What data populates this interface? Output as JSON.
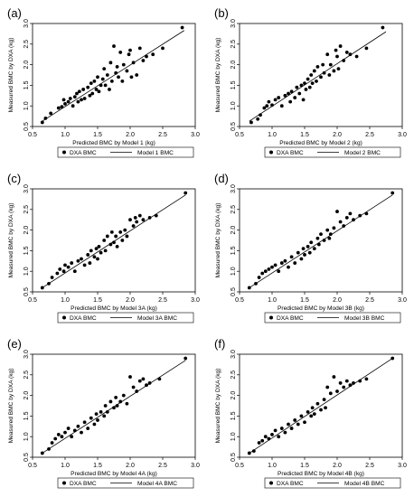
{
  "chart_data": [
    {
      "panel_label": "(a)",
      "type": "scatter",
      "xlabel": "Predicted BMC by Model 1 (kg)",
      "ylabel": "Measured BMC by DXA (kg)",
      "xlim": [
        0.5,
        3.0
      ],
      "ylim": [
        0.5,
        3.0
      ],
      "xticks": [
        "0.5",
        "1.0",
        "1.5",
        "2.0",
        "2.5",
        "3.0"
      ],
      "yticks": [
        "0.5",
        "1.0",
        "1.5",
        "2.0",
        "2.5",
        "3.0"
      ],
      "legend": [
        "DXA BMC",
        "Model 1 BMC"
      ],
      "line": [
        [
          0.65,
          0.63
        ],
        [
          2.83,
          2.83
        ]
      ],
      "points": [
        [
          0.65,
          0.6
        ],
        [
          0.7,
          0.7
        ],
        [
          0.78,
          0.82
        ],
        [
          0.9,
          0.95
        ],
        [
          0.95,
          0.98
        ],
        [
          0.98,
          1.15
        ],
        [
          1.0,
          1.05
        ],
        [
          1.05,
          1.1
        ],
        [
          1.08,
          1.18
        ],
        [
          1.12,
          1.0
        ],
        [
          1.15,
          1.22
        ],
        [
          1.18,
          1.3
        ],
        [
          1.2,
          1.1
        ],
        [
          1.22,
          1.35
        ],
        [
          1.25,
          1.15
        ],
        [
          1.28,
          1.4
        ],
        [
          1.3,
          1.18
        ],
        [
          1.35,
          1.45
        ],
        [
          1.38,
          1.25
        ],
        [
          1.4,
          1.55
        ],
        [
          1.42,
          1.3
        ],
        [
          1.45,
          1.6
        ],
        [
          1.48,
          1.4
        ],
        [
          1.5,
          1.7
        ],
        [
          1.52,
          1.35
        ],
        [
          1.55,
          1.5
        ],
        [
          1.58,
          1.65
        ],
        [
          1.6,
          1.9
        ],
        [
          1.62,
          1.5
        ],
        [
          1.65,
          1.75
        ],
        [
          1.68,
          1.4
        ],
        [
          1.7,
          2.05
        ],
        [
          1.72,
          1.6
        ],
        [
          1.75,
          2.45
        ],
        [
          1.78,
          1.8
        ],
        [
          1.8,
          1.95
        ],
        [
          1.82,
          1.7
        ],
        [
          1.85,
          2.3
        ],
        [
          1.88,
          1.6
        ],
        [
          1.9,
          2.0
        ],
        [
          1.95,
          1.85
        ],
        [
          1.98,
          2.25
        ],
        [
          2.0,
          2.35
        ],
        [
          2.02,
          1.7
        ],
        [
          2.05,
          2.05
        ],
        [
          2.1,
          1.75
        ],
        [
          2.15,
          2.4
        ],
        [
          2.2,
          2.1
        ],
        [
          2.25,
          2.2
        ],
        [
          2.35,
          2.25
        ],
        [
          2.5,
          2.4
        ],
        [
          2.8,
          2.9
        ]
      ]
    },
    {
      "panel_label": "(b)",
      "type": "scatter",
      "xlabel": "Predicted BMC by Model 2 (kg)",
      "ylabel": "Measured BMC by DXA (kg)",
      "xlim": [
        0.5,
        3.0
      ],
      "ylim": [
        0.5,
        3.0
      ],
      "xticks": [
        "0.5",
        "1.0",
        "1.5",
        "2.0",
        "2.5",
        "3.0"
      ],
      "yticks": [
        "0.5",
        "1.0",
        "1.5",
        "2.0",
        "2.5",
        "3.0"
      ],
      "legend": [
        "DXA BMC",
        "Model 2 BMC"
      ],
      "line": [
        [
          0.65,
          0.63
        ],
        [
          2.75,
          2.8
        ]
      ],
      "points": [
        [
          0.68,
          0.6
        ],
        [
          0.78,
          0.68
        ],
        [
          0.82,
          0.78
        ],
        [
          0.88,
          0.95
        ],
        [
          0.92,
          1.0
        ],
        [
          0.95,
          1.1
        ],
        [
          1.0,
          1.02
        ],
        [
          1.05,
          1.15
        ],
        [
          1.1,
          1.2
        ],
        [
          1.15,
          1.0
        ],
        [
          1.2,
          1.25
        ],
        [
          1.25,
          1.3
        ],
        [
          1.28,
          1.1
        ],
        [
          1.3,
          1.35
        ],
        [
          1.35,
          1.2
        ],
        [
          1.38,
          1.45
        ],
        [
          1.42,
          1.3
        ],
        [
          1.45,
          1.5
        ],
        [
          1.48,
          1.15
        ],
        [
          1.5,
          1.55
        ],
        [
          1.52,
          1.4
        ],
        [
          1.55,
          1.65
        ],
        [
          1.58,
          1.45
        ],
        [
          1.6,
          1.75
        ],
        [
          1.62,
          1.55
        ],
        [
          1.65,
          1.85
        ],
        [
          1.68,
          1.6
        ],
        [
          1.7,
          1.95
        ],
        [
          1.75,
          1.7
        ],
        [
          1.78,
          2.0
        ],
        [
          1.8,
          1.8
        ],
        [
          1.85,
          2.25
        ],
        [
          1.88,
          1.75
        ],
        [
          1.9,
          2.0
        ],
        [
          1.95,
          1.85
        ],
        [
          1.98,
          2.35
        ],
        [
          2.0,
          2.2
        ],
        [
          2.02,
          1.9
        ],
        [
          2.05,
          2.45
        ],
        [
          2.1,
          2.1
        ],
        [
          2.15,
          2.3
        ],
        [
          2.2,
          2.25
        ],
        [
          2.3,
          2.2
        ],
        [
          2.45,
          2.4
        ],
        [
          2.7,
          2.9
        ]
      ]
    },
    {
      "panel_label": "(c)",
      "type": "scatter",
      "xlabel": "Predicted BMC by Model 3A (kg)",
      "ylabel": "Measured BMC by DXA (kg)",
      "xlim": [
        0.5,
        3.0
      ],
      "ylim": [
        0.5,
        3.0
      ],
      "xticks": [
        "0.5",
        "1.0",
        "1.5",
        "2.0",
        "2.5",
        "3.0"
      ],
      "yticks": [
        "0.5",
        "1.0",
        "1.5",
        "2.0",
        "2.5",
        "3.0"
      ],
      "legend": [
        "DXA BMC",
        "Model 3A BMC"
      ],
      "line": [
        [
          0.65,
          0.6
        ],
        [
          2.85,
          2.85
        ]
      ],
      "points": [
        [
          0.65,
          0.6
        ],
        [
          0.75,
          0.7
        ],
        [
          0.8,
          0.85
        ],
        [
          0.88,
          0.95
        ],
        [
          0.92,
          1.05
        ],
        [
          0.98,
          1.0
        ],
        [
          1.0,
          1.15
        ],
        [
          1.05,
          1.1
        ],
        [
          1.1,
          1.2
        ],
        [
          1.15,
          1.0
        ],
        [
          1.2,
          1.25
        ],
        [
          1.25,
          1.3
        ],
        [
          1.3,
          1.15
        ],
        [
          1.35,
          1.4
        ],
        [
          1.38,
          1.2
        ],
        [
          1.4,
          1.5
        ],
        [
          1.45,
          1.35
        ],
        [
          1.48,
          1.55
        ],
        [
          1.5,
          1.3
        ],
        [
          1.52,
          1.6
        ],
        [
          1.55,
          1.45
        ],
        [
          1.6,
          1.75
        ],
        [
          1.62,
          1.5
        ],
        [
          1.65,
          1.85
        ],
        [
          1.7,
          1.65
        ],
        [
          1.72,
          1.95
        ],
        [
          1.75,
          1.7
        ],
        [
          1.78,
          1.85
        ],
        [
          1.8,
          1.6
        ],
        [
          1.85,
          1.95
        ],
        [
          1.88,
          1.75
        ],
        [
          1.92,
          2.0
        ],
        [
          1.95,
          1.85
        ],
        [
          2.0,
          2.25
        ],
        [
          2.05,
          2.1
        ],
        [
          2.08,
          2.3
        ],
        [
          2.1,
          2.2
        ],
        [
          2.15,
          2.35
        ],
        [
          2.2,
          2.25
        ],
        [
          2.3,
          2.3
        ],
        [
          2.4,
          2.35
        ],
        [
          2.85,
          2.9
        ]
      ]
    },
    {
      "panel_label": "(d)",
      "type": "scatter",
      "xlabel": "Predicted BMC by Model 3B (kg)",
      "ylabel": "Measured BMC by DXA (kg)",
      "xlim": [
        0.5,
        3.0
      ],
      "ylim": [
        0.5,
        3.0
      ],
      "xticks": [
        "0.5",
        "1.0",
        "1.5",
        "2.0",
        "2.5",
        "3.0"
      ],
      "yticks": [
        "0.5",
        "1.0",
        "1.5",
        "2.0",
        "2.5",
        "3.0"
      ],
      "legend": [
        "DXA BMC",
        "Model 3B BMC"
      ],
      "line": [
        [
          0.65,
          0.6
        ],
        [
          2.85,
          2.85
        ]
      ],
      "points": [
        [
          0.65,
          0.6
        ],
        [
          0.75,
          0.7
        ],
        [
          0.8,
          0.85
        ],
        [
          0.85,
          0.95
        ],
        [
          0.9,
          1.0
        ],
        [
          0.95,
          1.05
        ],
        [
          1.0,
          1.1
        ],
        [
          1.05,
          1.15
        ],
        [
          1.1,
          1.0
        ],
        [
          1.15,
          1.2
        ],
        [
          1.2,
          1.25
        ],
        [
          1.25,
          1.1
        ],
        [
          1.3,
          1.35
        ],
        [
          1.35,
          1.2
        ],
        [
          1.4,
          1.45
        ],
        [
          1.45,
          1.3
        ],
        [
          1.48,
          1.55
        ],
        [
          1.5,
          1.4
        ],
        [
          1.55,
          1.6
        ],
        [
          1.58,
          1.45
        ],
        [
          1.6,
          1.7
        ],
        [
          1.65,
          1.55
        ],
        [
          1.7,
          1.8
        ],
        [
          1.72,
          1.65
        ],
        [
          1.75,
          1.9
        ],
        [
          1.8,
          1.75
        ],
        [
          1.85,
          2.0
        ],
        [
          1.88,
          1.8
        ],
        [
          1.9,
          1.9
        ],
        [
          1.95,
          2.05
        ],
        [
          2.0,
          2.45
        ],
        [
          2.05,
          2.2
        ],
        [
          2.1,
          2.1
        ],
        [
          2.15,
          2.3
        ],
        [
          2.2,
          2.4
        ],
        [
          2.25,
          2.25
        ],
        [
          2.35,
          2.35
        ],
        [
          2.45,
          2.4
        ],
        [
          2.85,
          2.9
        ]
      ]
    },
    {
      "panel_label": "(e)",
      "type": "scatter",
      "xlabel": "Predicted BMC by Model 4A (kg)",
      "ylabel": "Measured BMC by DXA (kg)",
      "xlim": [
        0.5,
        3.0
      ],
      "ylim": [
        0.5,
        3.0
      ],
      "xticks": [
        "0.5",
        "1.0",
        "1.5",
        "2.0",
        "2.5",
        "3.0"
      ],
      "yticks": [
        "0.5",
        "1.0",
        "1.5",
        "2.0",
        "2.5",
        "3.0"
      ],
      "legend": [
        "DXA BMC",
        "Model 4A BMC"
      ],
      "line": [
        [
          0.65,
          0.6
        ],
        [
          2.85,
          2.85
        ]
      ],
      "points": [
        [
          0.65,
          0.6
        ],
        [
          0.75,
          0.7
        ],
        [
          0.8,
          0.85
        ],
        [
          0.85,
          0.95
        ],
        [
          0.9,
          1.05
        ],
        [
          0.95,
          1.0
        ],
        [
          1.0,
          1.1
        ],
        [
          1.05,
          1.2
        ],
        [
          1.1,
          1.0
        ],
        [
          1.15,
          1.15
        ],
        [
          1.2,
          1.25
        ],
        [
          1.25,
          1.1
        ],
        [
          1.3,
          1.35
        ],
        [
          1.35,
          1.2
        ],
        [
          1.4,
          1.45
        ],
        [
          1.45,
          1.3
        ],
        [
          1.48,
          1.55
        ],
        [
          1.5,
          1.4
        ],
        [
          1.55,
          1.6
        ],
        [
          1.6,
          1.5
        ],
        [
          1.62,
          1.75
        ],
        [
          1.65,
          1.6
        ],
        [
          1.7,
          1.85
        ],
        [
          1.75,
          1.7
        ],
        [
          1.78,
          1.95
        ],
        [
          1.8,
          1.75
        ],
        [
          1.85,
          1.85
        ],
        [
          1.9,
          2.0
        ],
        [
          1.95,
          1.8
        ],
        [
          2.0,
          2.45
        ],
        [
          2.05,
          2.2
        ],
        [
          2.1,
          2.1
        ],
        [
          2.15,
          2.35
        ],
        [
          2.2,
          2.4
        ],
        [
          2.25,
          2.25
        ],
        [
          2.3,
          2.3
        ],
        [
          2.45,
          2.4
        ],
        [
          2.85,
          2.9
        ]
      ]
    },
    {
      "panel_label": "(f)",
      "type": "scatter",
      "xlabel": "Predicted BMC by Model 4B (kg)",
      "ylabel": "Measured BMC by DXA (kg)",
      "xlim": [
        0.5,
        3.0
      ],
      "ylim": [
        0.5,
        3.0
      ],
      "xticks": [
        "0.5",
        "1.0",
        "1.5",
        "2.0",
        "2.5",
        "3.0"
      ],
      "yticks": [
        "0.5",
        "1.0",
        "1.5",
        "2.0",
        "2.5",
        "3.0"
      ],
      "legend": [
        "DXA BMC",
        "Model 4B BMC"
      ],
      "line": [
        [
          0.65,
          0.6
        ],
        [
          2.85,
          2.9
        ]
      ],
      "points": [
        [
          0.65,
          0.6
        ],
        [
          0.72,
          0.65
        ],
        [
          0.8,
          0.85
        ],
        [
          0.85,
          0.9
        ],
        [
          0.9,
          1.0
        ],
        [
          0.95,
          0.95
        ],
        [
          1.0,
          1.05
        ],
        [
          1.05,
          1.15
        ],
        [
          1.1,
          1.0
        ],
        [
          1.15,
          1.2
        ],
        [
          1.2,
          1.1
        ],
        [
          1.25,
          1.3
        ],
        [
          1.3,
          1.2
        ],
        [
          1.35,
          1.4
        ],
        [
          1.4,
          1.3
        ],
        [
          1.45,
          1.5
        ],
        [
          1.5,
          1.35
        ],
        [
          1.55,
          1.6
        ],
        [
          1.6,
          1.5
        ],
        [
          1.62,
          1.7
        ],
        [
          1.65,
          1.55
        ],
        [
          1.7,
          1.8
        ],
        [
          1.75,
          1.65
        ],
        [
          1.8,
          1.9
        ],
        [
          1.82,
          1.7
        ],
        [
          1.85,
          2.2
        ],
        [
          1.9,
          2.05
        ],
        [
          1.95,
          2.45
        ],
        [
          2.0,
          2.1
        ],
        [
          2.05,
          2.3
        ],
        [
          2.1,
          2.2
        ],
        [
          2.15,
          2.35
        ],
        [
          2.2,
          2.25
        ],
        [
          2.25,
          2.3
        ],
        [
          2.35,
          2.35
        ],
        [
          2.45,
          2.4
        ],
        [
          2.85,
          2.9
        ]
      ]
    }
  ]
}
